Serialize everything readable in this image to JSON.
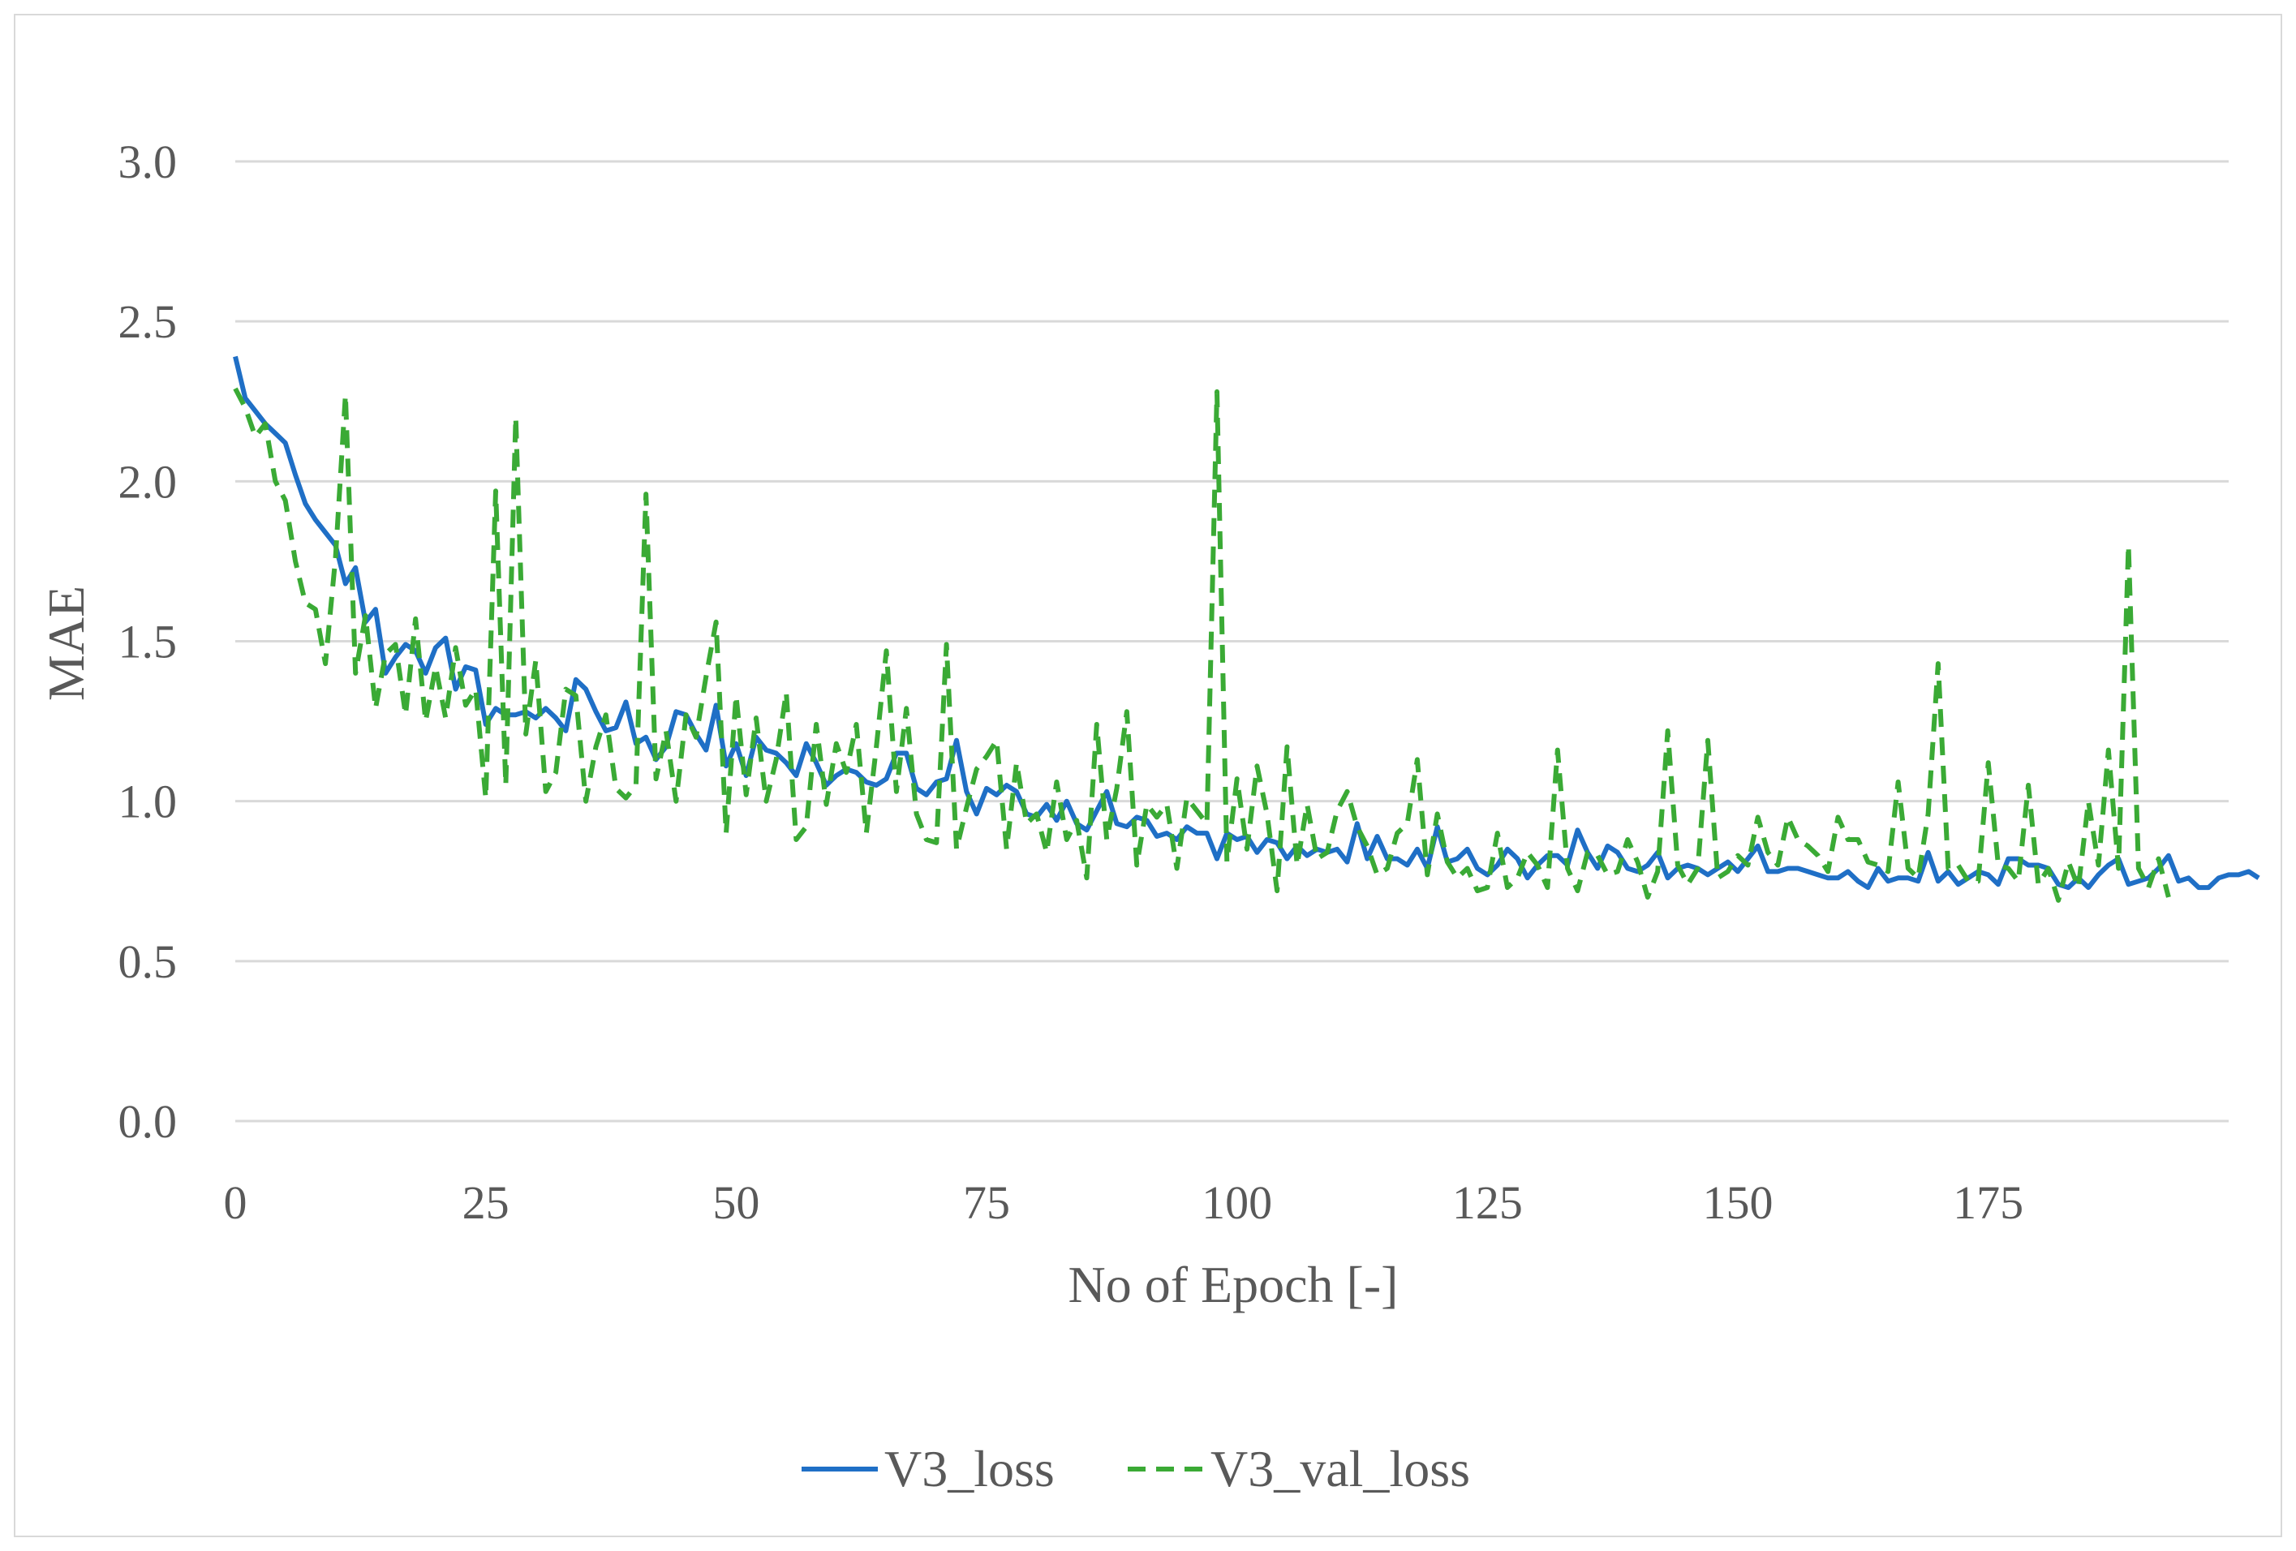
{
  "chart_data": {
    "type": "line",
    "title": "",
    "xlabel": "No of Epoch [-]",
    "ylabel": "MAE",
    "xlim": [
      0,
      199
    ],
    "ylim": [
      0,
      3.0
    ],
    "x_ticks": [
      0,
      25,
      50,
      75,
      100,
      125,
      150,
      175
    ],
    "x_tick_labels": [
      "0",
      "25",
      "50",
      "75",
      "100",
      "125",
      "150",
      "175"
    ],
    "y_ticks": [
      0,
      0.5,
      1.0,
      1.5,
      2.0,
      2.5,
      3.0
    ],
    "y_tick_labels": [
      "0.0",
      "0.5",
      "1.0",
      "1.5",
      "2.0",
      "2.5",
      "3.0"
    ],
    "grid": true,
    "legend_position": "bottom-center",
    "colors": {
      "V3_loss": "#1f6fc6",
      "V3_val_loss": "#3aaa35",
      "grid": "#d9d9d9",
      "text": "#595959"
    },
    "series": [
      {
        "name": "V3_loss",
        "style": "solid",
        "values": [
          2.39,
          2.26,
          2.22,
          2.18,
          2.15,
          2.12,
          2.02,
          1.93,
          1.88,
          1.84,
          1.8,
          1.68,
          1.73,
          1.56,
          1.6,
          1.4,
          1.45,
          1.49,
          1.47,
          1.4,
          1.48,
          1.51,
          1.35,
          1.42,
          1.41,
          1.24,
          1.29,
          1.27,
          1.27,
          1.28,
          1.26,
          1.29,
          1.26,
          1.22,
          1.38,
          1.35,
          1.28,
          1.22,
          1.23,
          1.31,
          1.18,
          1.2,
          1.13,
          1.17,
          1.28,
          1.27,
          1.21,
          1.16,
          1.3,
          1.11,
          1.18,
          1.08,
          1.2,
          1.16,
          1.15,
          1.12,
          1.08,
          1.18,
          1.12,
          1.05,
          1.08,
          1.1,
          1.09,
          1.06,
          1.05,
          1.07,
          1.15,
          1.15,
          1.04,
          1.02,
          1.06,
          1.07,
          1.19,
          1.03,
          0.96,
          1.04,
          1.02,
          1.05,
          1.03,
          0.96,
          0.95,
          0.99,
          0.94,
          1.0,
          0.93,
          0.91,
          0.97,
          1.03,
          0.93,
          0.92,
          0.95,
          0.94,
          0.89,
          0.9,
          0.88,
          0.92,
          0.9,
          0.9,
          0.82,
          0.9,
          0.88,
          0.89,
          0.84,
          0.88,
          0.87,
          0.82,
          0.86,
          0.83,
          0.85,
          0.84,
          0.85,
          0.81,
          0.93,
          0.82,
          0.89,
          0.82,
          0.82,
          0.8,
          0.85,
          0.79,
          0.92,
          0.81,
          0.82,
          0.85,
          0.79,
          0.77,
          0.8,
          0.85,
          0.82,
          0.76,
          0.8,
          0.83,
          0.83,
          0.8,
          0.91,
          0.84,
          0.79,
          0.86,
          0.84,
          0.79,
          0.78,
          0.8,
          0.84,
          0.76,
          0.79,
          0.8,
          0.79,
          0.77,
          0.79,
          0.81,
          0.78,
          0.82,
          0.86,
          0.78,
          0.78,
          0.79,
          0.79,
          0.78,
          0.77,
          0.76,
          0.76,
          0.78,
          0.75,
          0.73,
          0.79,
          0.75,
          0.76,
          0.76,
          0.75,
          0.84,
          0.75,
          0.78,
          0.74,
          0.76,
          0.78,
          0.77,
          0.74,
          0.82,
          0.82,
          0.8,
          0.8,
          0.79,
          0.74,
          0.73,
          0.76,
          0.73,
          0.77,
          0.8,
          0.82,
          0.74,
          0.75,
          0.76,
          0.79,
          0.83,
          0.75,
          0.76,
          0.73,
          0.73,
          0.76,
          0.77,
          0.77,
          0.78,
          0.76
        ]
      },
      {
        "name": "V3_val_loss",
        "style": "dashed",
        "values": [
          2.29,
          2.23,
          2.14,
          2.18,
          2.0,
          1.94,
          1.75,
          1.62,
          1.6,
          1.43,
          1.76,
          2.27,
          1.4,
          1.58,
          1.29,
          1.46,
          1.49,
          1.27,
          1.57,
          1.25,
          1.42,
          1.26,
          1.48,
          1.3,
          1.35,
          1.01,
          1.97,
          1.05,
          2.2,
          1.21,
          1.44,
          1.03,
          1.09,
          1.35,
          1.33,
          1.0,
          1.17,
          1.27,
          1.04,
          1.01,
          1.05,
          1.96,
          1.07,
          1.22,
          1.0,
          1.27,
          1.2,
          1.39,
          1.56,
          0.9,
          1.33,
          1.02,
          1.26,
          1.0,
          1.13,
          1.34,
          0.88,
          0.92,
          1.24,
          0.99,
          1.18,
          1.09,
          1.24,
          0.9,
          1.17,
          1.47,
          1.03,
          1.29,
          0.96,
          0.88,
          0.87,
          1.49,
          0.85,
          0.98,
          1.1,
          1.14,
          1.19,
          0.85,
          1.12,
          0.93,
          0.96,
          0.84,
          1.06,
          0.88,
          0.94,
          0.76,
          1.24,
          0.88,
          1.04,
          1.28,
          0.8,
          0.99,
          0.95,
          0.99,
          0.79,
          1.01,
          0.97,
          0.93,
          2.28,
          0.81,
          1.07,
          0.85,
          1.11,
          0.96,
          0.72,
          1.17,
          0.8,
          0.99,
          0.82,
          0.84,
          0.97,
          1.03,
          0.92,
          0.86,
          0.77,
          0.79,
          0.9,
          0.93,
          1.13,
          0.77,
          0.96,
          0.81,
          0.76,
          0.79,
          0.72,
          0.73,
          0.9,
          0.73,
          0.76,
          0.84,
          0.8,
          0.73,
          1.16,
          0.79,
          0.72,
          0.84,
          0.83,
          0.77,
          0.78,
          0.88,
          0.81,
          0.7,
          0.78,
          1.22,
          0.8,
          0.74,
          0.79,
          1.19,
          0.76,
          0.78,
          0.83,
          0.8,
          0.95,
          0.84,
          0.8,
          0.95,
          0.88,
          0.86,
          0.83,
          0.78,
          0.95,
          0.88,
          0.88,
          0.81,
          0.8,
          0.78,
          1.06,
          0.79,
          0.76,
          0.96,
          1.43,
          0.79,
          0.8,
          0.75,
          0.75,
          1.12,
          0.8,
          0.79,
          0.75,
          1.05,
          0.74,
          0.79,
          0.69,
          0.81,
          0.73,
          1.0,
          0.8,
          1.16,
          0.79,
          1.8,
          0.79,
          0.73,
          0.82,
          0.7
        ]
      }
    ]
  }
}
